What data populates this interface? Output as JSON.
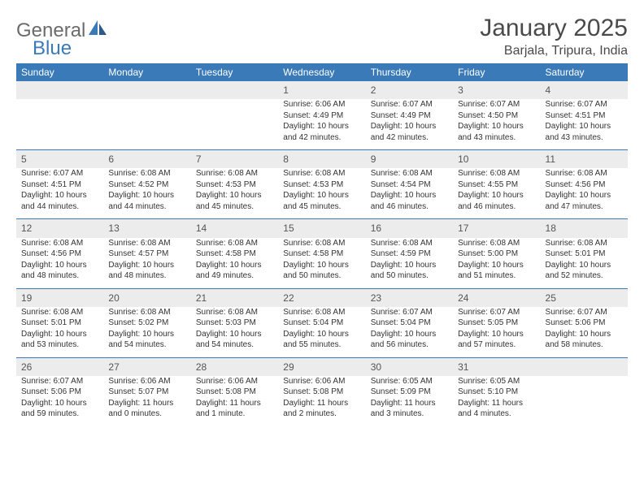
{
  "logo": {
    "part1": "General",
    "part2": "Blue"
  },
  "title": "January 2025",
  "location": "Barjala, Tripura, India",
  "colors": {
    "header_bg": "#3a7ab8",
    "header_text": "#ffffff",
    "daynum_bg": "#ececec",
    "row_divider": "#3a7ab8",
    "body_text": "#333333",
    "title_text": "#4a4a4a",
    "logo_gray": "#6b6b6b",
    "logo_blue": "#3a7ab8"
  },
  "weekdays": [
    "Sunday",
    "Monday",
    "Tuesday",
    "Wednesday",
    "Thursday",
    "Friday",
    "Saturday"
  ],
  "weeks": [
    [
      null,
      null,
      null,
      {
        "d": "1",
        "sr": "Sunrise: 6:06 AM",
        "ss": "Sunset: 4:49 PM",
        "dl1": "Daylight: 10 hours",
        "dl2": "and 42 minutes."
      },
      {
        "d": "2",
        "sr": "Sunrise: 6:07 AM",
        "ss": "Sunset: 4:49 PM",
        "dl1": "Daylight: 10 hours",
        "dl2": "and 42 minutes."
      },
      {
        "d": "3",
        "sr": "Sunrise: 6:07 AM",
        "ss": "Sunset: 4:50 PM",
        "dl1": "Daylight: 10 hours",
        "dl2": "and 43 minutes."
      },
      {
        "d": "4",
        "sr": "Sunrise: 6:07 AM",
        "ss": "Sunset: 4:51 PM",
        "dl1": "Daylight: 10 hours",
        "dl2": "and 43 minutes."
      }
    ],
    [
      {
        "d": "5",
        "sr": "Sunrise: 6:07 AM",
        "ss": "Sunset: 4:51 PM",
        "dl1": "Daylight: 10 hours",
        "dl2": "and 44 minutes."
      },
      {
        "d": "6",
        "sr": "Sunrise: 6:08 AM",
        "ss": "Sunset: 4:52 PM",
        "dl1": "Daylight: 10 hours",
        "dl2": "and 44 minutes."
      },
      {
        "d": "7",
        "sr": "Sunrise: 6:08 AM",
        "ss": "Sunset: 4:53 PM",
        "dl1": "Daylight: 10 hours",
        "dl2": "and 45 minutes."
      },
      {
        "d": "8",
        "sr": "Sunrise: 6:08 AM",
        "ss": "Sunset: 4:53 PM",
        "dl1": "Daylight: 10 hours",
        "dl2": "and 45 minutes."
      },
      {
        "d": "9",
        "sr": "Sunrise: 6:08 AM",
        "ss": "Sunset: 4:54 PM",
        "dl1": "Daylight: 10 hours",
        "dl2": "and 46 minutes."
      },
      {
        "d": "10",
        "sr": "Sunrise: 6:08 AM",
        "ss": "Sunset: 4:55 PM",
        "dl1": "Daylight: 10 hours",
        "dl2": "and 46 minutes."
      },
      {
        "d": "11",
        "sr": "Sunrise: 6:08 AM",
        "ss": "Sunset: 4:56 PM",
        "dl1": "Daylight: 10 hours",
        "dl2": "and 47 minutes."
      }
    ],
    [
      {
        "d": "12",
        "sr": "Sunrise: 6:08 AM",
        "ss": "Sunset: 4:56 PM",
        "dl1": "Daylight: 10 hours",
        "dl2": "and 48 minutes."
      },
      {
        "d": "13",
        "sr": "Sunrise: 6:08 AM",
        "ss": "Sunset: 4:57 PM",
        "dl1": "Daylight: 10 hours",
        "dl2": "and 48 minutes."
      },
      {
        "d": "14",
        "sr": "Sunrise: 6:08 AM",
        "ss": "Sunset: 4:58 PM",
        "dl1": "Daylight: 10 hours",
        "dl2": "and 49 minutes."
      },
      {
        "d": "15",
        "sr": "Sunrise: 6:08 AM",
        "ss": "Sunset: 4:58 PM",
        "dl1": "Daylight: 10 hours",
        "dl2": "and 50 minutes."
      },
      {
        "d": "16",
        "sr": "Sunrise: 6:08 AM",
        "ss": "Sunset: 4:59 PM",
        "dl1": "Daylight: 10 hours",
        "dl2": "and 50 minutes."
      },
      {
        "d": "17",
        "sr": "Sunrise: 6:08 AM",
        "ss": "Sunset: 5:00 PM",
        "dl1": "Daylight: 10 hours",
        "dl2": "and 51 minutes."
      },
      {
        "d": "18",
        "sr": "Sunrise: 6:08 AM",
        "ss": "Sunset: 5:01 PM",
        "dl1": "Daylight: 10 hours",
        "dl2": "and 52 minutes."
      }
    ],
    [
      {
        "d": "19",
        "sr": "Sunrise: 6:08 AM",
        "ss": "Sunset: 5:01 PM",
        "dl1": "Daylight: 10 hours",
        "dl2": "and 53 minutes."
      },
      {
        "d": "20",
        "sr": "Sunrise: 6:08 AM",
        "ss": "Sunset: 5:02 PM",
        "dl1": "Daylight: 10 hours",
        "dl2": "and 54 minutes."
      },
      {
        "d": "21",
        "sr": "Sunrise: 6:08 AM",
        "ss": "Sunset: 5:03 PM",
        "dl1": "Daylight: 10 hours",
        "dl2": "and 54 minutes."
      },
      {
        "d": "22",
        "sr": "Sunrise: 6:08 AM",
        "ss": "Sunset: 5:04 PM",
        "dl1": "Daylight: 10 hours",
        "dl2": "and 55 minutes."
      },
      {
        "d": "23",
        "sr": "Sunrise: 6:07 AM",
        "ss": "Sunset: 5:04 PM",
        "dl1": "Daylight: 10 hours",
        "dl2": "and 56 minutes."
      },
      {
        "d": "24",
        "sr": "Sunrise: 6:07 AM",
        "ss": "Sunset: 5:05 PM",
        "dl1": "Daylight: 10 hours",
        "dl2": "and 57 minutes."
      },
      {
        "d": "25",
        "sr": "Sunrise: 6:07 AM",
        "ss": "Sunset: 5:06 PM",
        "dl1": "Daylight: 10 hours",
        "dl2": "and 58 minutes."
      }
    ],
    [
      {
        "d": "26",
        "sr": "Sunrise: 6:07 AM",
        "ss": "Sunset: 5:06 PM",
        "dl1": "Daylight: 10 hours",
        "dl2": "and 59 minutes."
      },
      {
        "d": "27",
        "sr": "Sunrise: 6:06 AM",
        "ss": "Sunset: 5:07 PM",
        "dl1": "Daylight: 11 hours",
        "dl2": "and 0 minutes."
      },
      {
        "d": "28",
        "sr": "Sunrise: 6:06 AM",
        "ss": "Sunset: 5:08 PM",
        "dl1": "Daylight: 11 hours",
        "dl2": "and 1 minute."
      },
      {
        "d": "29",
        "sr": "Sunrise: 6:06 AM",
        "ss": "Sunset: 5:08 PM",
        "dl1": "Daylight: 11 hours",
        "dl2": "and 2 minutes."
      },
      {
        "d": "30",
        "sr": "Sunrise: 6:05 AM",
        "ss": "Sunset: 5:09 PM",
        "dl1": "Daylight: 11 hours",
        "dl2": "and 3 minutes."
      },
      {
        "d": "31",
        "sr": "Sunrise: 6:05 AM",
        "ss": "Sunset: 5:10 PM",
        "dl1": "Daylight: 11 hours",
        "dl2": "and 4 minutes."
      },
      null
    ]
  ]
}
